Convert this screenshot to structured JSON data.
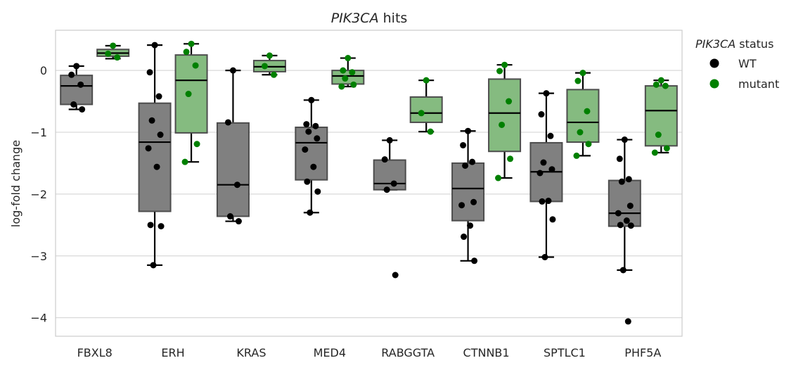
{
  "chart_data": {
    "type": "box",
    "title_italic": "PIK3CA",
    "title_rest": " hits",
    "xlabel": "",
    "ylabel": "log-fold change",
    "ylim": [
      -4.3,
      0.65
    ],
    "yticks": [
      -4,
      -3,
      -2,
      -1,
      0
    ],
    "ytick_labels": [
      "−4",
      "−3",
      "−2",
      "−1",
      "0"
    ],
    "grid": true,
    "legend": {
      "placement": "outside-right",
      "title_italic": "PIK3CA",
      "title_rest": " status",
      "entries": [
        {
          "label": "WT",
          "color": "#000000"
        },
        {
          "label": "mutant",
          "color": "#008000"
        }
      ]
    },
    "colors": {
      "wt_box": "#808080",
      "mutant_box": "#85bb80",
      "wt_point": "#000000",
      "mutant_point": "#008000",
      "box_edge": "#4d4d4d"
    },
    "categories": [
      "FBXL8",
      "ERH",
      "KRAS",
      "MED4",
      "RABGGTA",
      "CTNNB1",
      "SPTLC1",
      "PHF5A"
    ],
    "series": [
      {
        "name": "WT",
        "groups": [
          {
            "q1": -0.55,
            "median": -0.25,
            "q3": -0.08,
            "whislo": -0.63,
            "whishi": 0.07,
            "points": [
              0.07,
              -0.07,
              -0.23,
              -0.55,
              -0.63
            ]
          },
          {
            "q1": -2.28,
            "median": -1.16,
            "q3": -0.53,
            "whislo": -3.15,
            "whishi": 0.41,
            "points": [
              0.41,
              -0.03,
              -0.42,
              -0.81,
              -1.04,
              -1.26,
              -1.56,
              -2.5,
              -2.52,
              -3.15
            ]
          },
          {
            "q1": -2.36,
            "median": -1.85,
            "q3": -0.85,
            "whislo": -2.44,
            "whishi": 0.0,
            "points": [
              0.0,
              -0.84,
              -1.85,
              -2.36,
              -2.44
            ]
          },
          {
            "q1": -1.77,
            "median": -1.17,
            "q3": -0.92,
            "whislo": -2.3,
            "whishi": -0.48,
            "points": [
              -0.48,
              -0.87,
              -0.9,
              -0.99,
              -1.1,
              -1.28,
              -1.56,
              -1.8,
              -1.96,
              -2.3
            ]
          },
          {
            "q1": -1.93,
            "median": -1.83,
            "q3": -1.45,
            "whislo": -1.93,
            "whishi": -1.13,
            "points": [
              -1.13,
              -1.44,
              -1.83,
              -1.93,
              -3.31
            ]
          },
          {
            "q1": -2.43,
            "median": -1.91,
            "q3": -1.5,
            "whislo": -3.08,
            "whishi": -0.98,
            "points": [
              -0.98,
              -1.21,
              -1.48,
              -1.54,
              -2.13,
              -2.18,
              -2.51,
              -2.69,
              -3.08
            ]
          },
          {
            "q1": -2.12,
            "median": -1.64,
            "q3": -1.17,
            "whislo": -3.02,
            "whishi": -0.37,
            "points": [
              -0.37,
              -0.71,
              -1.06,
              -1.49,
              -1.6,
              -1.66,
              -2.11,
              -2.12,
              -2.41,
              -3.02
            ]
          },
          {
            "q1": -2.52,
            "median": -2.31,
            "q3": -1.78,
            "whislo": -3.23,
            "whishi": -1.12,
            "points": [
              -1.12,
              -1.43,
              -1.76,
              -1.8,
              -2.19,
              -2.31,
              -2.43,
              -2.5,
              -2.51,
              -3.23,
              -4.06
            ]
          }
        ]
      },
      {
        "name": "mutant",
        "groups": [
          {
            "q1": 0.23,
            "median": 0.28,
            "q3": 0.34,
            "whislo": 0.19,
            "whishi": 0.4,
            "points": [
              0.4,
              0.27,
              0.21
            ]
          },
          {
            "q1": -1.01,
            "median": -0.16,
            "q3": 0.25,
            "whislo": -1.48,
            "whishi": 0.43,
            "points": [
              0.43,
              0.3,
              0.08,
              -0.38,
              -1.19,
              -1.48
            ]
          },
          {
            "q1": -0.02,
            "median": 0.06,
            "q3": 0.16,
            "whislo": -0.07,
            "whishi": 0.24,
            "points": [
              0.24,
              0.07,
              -0.07
            ]
          },
          {
            "q1": -0.22,
            "median": -0.09,
            "q3": 0.0,
            "whislo": -0.26,
            "whishi": 0.2,
            "points": [
              0.2,
              0.0,
              -0.03,
              -0.13,
              -0.23,
              -0.26
            ]
          },
          {
            "q1": -0.84,
            "median": -0.69,
            "q3": -0.43,
            "whislo": -0.99,
            "whishi": -0.16,
            "points": [
              -0.16,
              -0.69,
              -0.99
            ]
          },
          {
            "q1": -1.31,
            "median": -0.69,
            "q3": -0.14,
            "whislo": -1.74,
            "whishi": 0.09,
            "points": [
              0.09,
              -0.01,
              -0.5,
              -0.88,
              -1.43,
              -1.74
            ]
          },
          {
            "q1": -1.16,
            "median": -0.84,
            "q3": -0.31,
            "whislo": -1.38,
            "whishi": -0.04,
            "points": [
              -0.04,
              -0.17,
              -0.66,
              -1.0,
              -1.19,
              -1.38
            ]
          },
          {
            "q1": -1.22,
            "median": -0.65,
            "q3": -0.25,
            "whislo": -1.33,
            "whishi": -0.16,
            "points": [
              -0.16,
              -0.23,
              -0.25,
              -1.04,
              -1.26,
              -1.33
            ]
          }
        ]
      }
    ]
  }
}
